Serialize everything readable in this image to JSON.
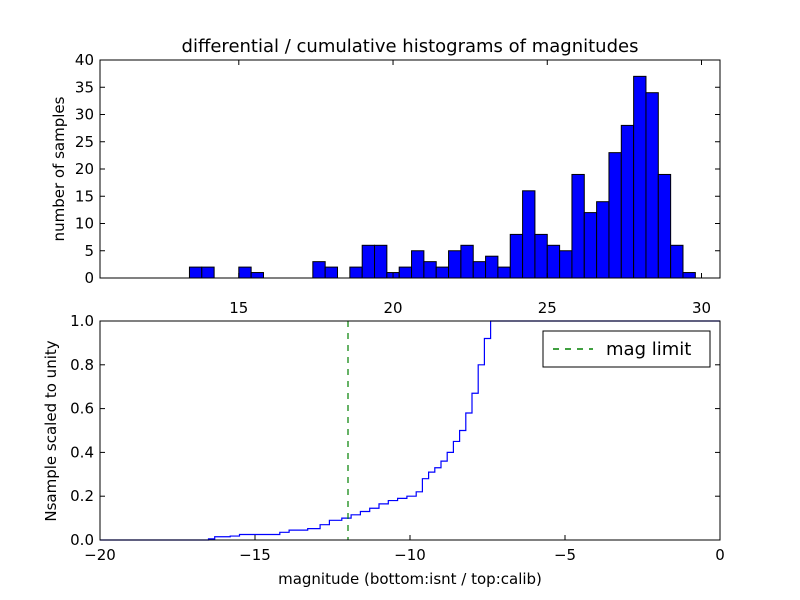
{
  "chart_data": [
    {
      "type": "bar",
      "title": "differential / cumulative histograms of magnitudes",
      "xlabel": "",
      "ylabel": "number of samples",
      "xlim": [
        10.5,
        30.6
      ],
      "ylim": [
        0,
        40
      ],
      "xticks": [
        15,
        20,
        25,
        30
      ],
      "yticks": [
        0,
        5,
        10,
        15,
        20,
        25,
        30,
        35,
        40
      ],
      "xtick_position": "top of lower axes",
      "color": "#0000ff",
      "edge_color": "#000000",
      "bins": [
        {
          "x0": 13.4,
          "x1": 13.8,
          "count": 2
        },
        {
          "x0": 13.8,
          "x1": 14.2,
          "count": 2
        },
        {
          "x0": 15.0,
          "x1": 15.4,
          "count": 2
        },
        {
          "x0": 15.4,
          "x1": 15.8,
          "count": 1
        },
        {
          "x0": 17.4,
          "x1": 17.8,
          "count": 3
        },
        {
          "x0": 17.8,
          "x1": 18.2,
          "count": 2
        },
        {
          "x0": 18.6,
          "x1": 19.0,
          "count": 2
        },
        {
          "x0": 19.0,
          "x1": 19.4,
          "count": 6
        },
        {
          "x0": 19.4,
          "x1": 19.8,
          "count": 6
        },
        {
          "x0": 19.8,
          "x1": 20.2,
          "count": 1
        },
        {
          "x0": 20.2,
          "x1": 20.6,
          "count": 2
        },
        {
          "x0": 20.6,
          "x1": 21.0,
          "count": 5
        },
        {
          "x0": 21.0,
          "x1": 21.4,
          "count": 3
        },
        {
          "x0": 21.4,
          "x1": 21.8,
          "count": 2
        },
        {
          "x0": 21.8,
          "x1": 22.2,
          "count": 5
        },
        {
          "x0": 22.2,
          "x1": 22.6,
          "count": 6
        },
        {
          "x0": 22.6,
          "x1": 23.0,
          "count": 3
        },
        {
          "x0": 23.0,
          "x1": 23.4,
          "count": 4
        },
        {
          "x0": 23.4,
          "x1": 23.8,
          "count": 2
        },
        {
          "x0": 23.8,
          "x1": 24.2,
          "count": 8
        },
        {
          "x0": 24.2,
          "x1": 24.6,
          "count": 16
        },
        {
          "x0": 24.6,
          "x1": 25.0,
          "count": 8
        },
        {
          "x0": 25.0,
          "x1": 25.4,
          "count": 6
        },
        {
          "x0": 25.4,
          "x1": 25.8,
          "count": 5
        },
        {
          "x0": 25.8,
          "x1": 26.2,
          "count": 19
        },
        {
          "x0": 26.2,
          "x1": 26.6,
          "count": 12
        },
        {
          "x0": 26.6,
          "x1": 27.0,
          "count": 14
        },
        {
          "x0": 27.0,
          "x1": 27.4,
          "count": 23
        },
        {
          "x0": 27.4,
          "x1": 27.8,
          "count": 28
        },
        {
          "x0": 27.8,
          "x1": 28.2,
          "count": 37
        },
        {
          "x0": 28.2,
          "x1": 28.6,
          "count": 34
        },
        {
          "x0": 28.6,
          "x1": 29.0,
          "count": 19
        },
        {
          "x0": 29.0,
          "x1": 29.4,
          "count": 6
        },
        {
          "x0": 29.4,
          "x1": 29.8,
          "count": 1
        }
      ]
    },
    {
      "type": "line",
      "step": true,
      "title": "",
      "xlabel": "magnitude (bottom:isnt / top:calib)",
      "ylabel": "Nsample scaled to unity",
      "xlim": [
        -20,
        0
      ],
      "ylim": [
        0.0,
        1.0
      ],
      "xticks": [
        -20,
        -15,
        -10,
        -5,
        0
      ],
      "yticks": [
        "0.0",
        "0.2",
        "0.4",
        "0.6",
        "0.8",
        "1.0"
      ],
      "xtick_labels": [
        "−20",
        "−15",
        "−10",
        "−5",
        "0"
      ],
      "legend": {
        "label": "mag limit",
        "placement": "top-right"
      },
      "series": [
        {
          "color": "#0000ff",
          "style": "step",
          "x": [
            -20.0,
            -16.5,
            -16.3,
            -15.8,
            -15.5,
            -14.2,
            -13.9,
            -13.3,
            -12.9,
            -12.6,
            -12.2,
            -11.9,
            -11.6,
            -11.3,
            -11.0,
            -10.7,
            -10.4,
            -10.1,
            -9.8,
            -9.6,
            -9.4,
            -9.2,
            -9.0,
            -8.8,
            -8.6,
            -8.4,
            -8.2,
            -8.0,
            -7.8,
            -7.6,
            -7.4,
            -7.2,
            -7.0,
            -6.8,
            -6.6,
            0.0
          ],
          "y": [
            0.0,
            0.005,
            0.015,
            0.018,
            0.025,
            0.035,
            0.045,
            0.052,
            0.07,
            0.09,
            0.1,
            0.115,
            0.13,
            0.145,
            0.165,
            0.18,
            0.19,
            0.2,
            0.22,
            0.28,
            0.31,
            0.33,
            0.36,
            0.4,
            0.45,
            0.5,
            0.58,
            0.67,
            0.8,
            0.92,
            1.0,
            1.0,
            1.0,
            1.0,
            1.0,
            1.0
          ]
        }
      ],
      "vlines": [
        {
          "x": -12,
          "color": "#008000",
          "style": "dashed",
          "name": "mag limit"
        }
      ]
    }
  ]
}
